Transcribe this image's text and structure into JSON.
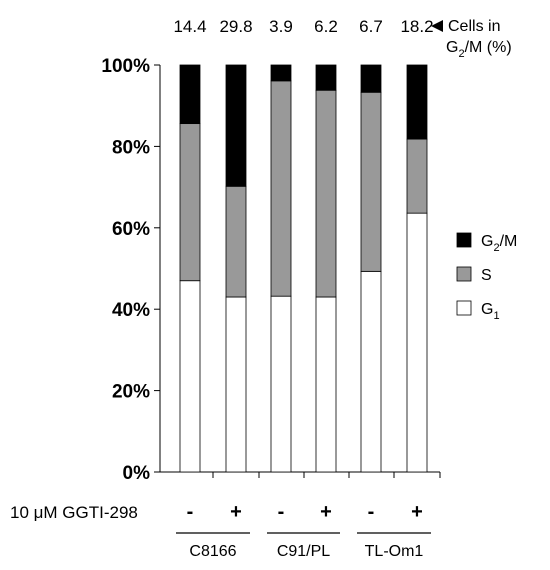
{
  "chart_data": {
    "type": "bar",
    "stacked": true,
    "title": "",
    "ylabel": "",
    "xlabel": "",
    "ylim": [
      0,
      100
    ],
    "yticks": [
      "0%",
      "20%",
      "40%",
      "60%",
      "80%",
      "100%"
    ],
    "categories": [
      "C8166 -",
      "C8166 +",
      "C91/PL -",
      "C91/PL +",
      "TL-Om1 -",
      "TL-Om1 +"
    ],
    "treatment_label": "10 μM GGTI-298",
    "treatment_signs": [
      "-",
      "+",
      "-",
      "+",
      "-",
      "+"
    ],
    "groups": [
      "C8166",
      "C91/PL",
      "TL-Om1"
    ],
    "series": [
      {
        "name": "G1",
        "display": "G",
        "sub": "1",
        "color": "#ffffff",
        "values": [
          47.0,
          43.0,
          43.2,
          43.0,
          49.3,
          63.6
        ]
      },
      {
        "name": "S",
        "display": "S",
        "sub": "",
        "color": "#999999",
        "values": [
          38.6,
          27.2,
          52.9,
          50.8,
          44.0,
          18.2
        ]
      },
      {
        "name": "G2/M",
        "display": "G",
        "sub": "2",
        "suffix": "/M",
        "color": "#000000",
        "values": [
          14.4,
          29.8,
          3.9,
          6.2,
          6.7,
          18.2
        ]
      }
    ],
    "top_values": [
      "14.4",
      "29.8",
      "3.9",
      "6.2",
      "6.7",
      "18.2"
    ],
    "annotation": {
      "line1": "Cells in",
      "line2_main": "G",
      "line2_sub": "2",
      "line2_rest": "/M (%)"
    },
    "legend_position": "right"
  }
}
